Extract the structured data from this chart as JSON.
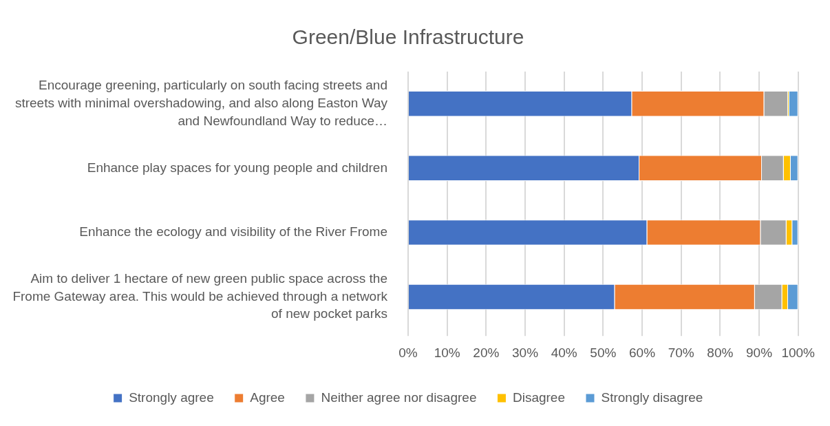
{
  "chart_data": {
    "type": "bar",
    "orientation": "horizontal",
    "stacked": true,
    "title": "Green/Blue Infrastructure",
    "categories": [
      "Encourage greening, particularly on south facing streets and streets with minimal overshadowing, and also along Easton Way and Newfoundland Way to reduce…",
      "Enhance play spaces for young people and children",
      "Enhance the ecology and visibility of the River Frome",
      "Aim to deliver 1 hectare of new green public space across the Frome Gateway area. This would be achieved through a network of new pocket parks"
    ],
    "series": [
      {
        "name": "Strongly agree",
        "color": "#4472c4",
        "values": [
          57.4,
          59.3,
          61.3,
          53.0
        ]
      },
      {
        "name": "Agree",
        "color": "#ed7d31",
        "values": [
          33.9,
          31.4,
          29.1,
          35.9
        ]
      },
      {
        "name": "Neither agree nor disagree",
        "color": "#a5a5a5",
        "values": [
          6.1,
          5.6,
          6.6,
          7.0
        ]
      },
      {
        "name": "Disagree",
        "color": "#ffc000",
        "values": [
          0.3,
          1.8,
          1.5,
          1.5
        ]
      },
      {
        "name": "Strongly disagree",
        "color": "#5b9bd5",
        "values": [
          2.3,
          1.9,
          1.5,
          2.6
        ]
      }
    ],
    "xlim": [
      0,
      100
    ],
    "xticks": [
      {
        "value": 0,
        "label": "0%"
      },
      {
        "value": 10,
        "label": "10%"
      },
      {
        "value": 20,
        "label": "20%"
      },
      {
        "value": 30,
        "label": "30%"
      },
      {
        "value": 40,
        "label": "40%"
      },
      {
        "value": 50,
        "label": "50%"
      },
      {
        "value": 60,
        "label": "60%"
      },
      {
        "value": 70,
        "label": "70%"
      },
      {
        "value": 80,
        "label": "80%"
      },
      {
        "value": 90,
        "label": "90%"
      },
      {
        "value": 100,
        "label": "100%"
      }
    ],
    "grid": "x",
    "legend": "bottom"
  }
}
